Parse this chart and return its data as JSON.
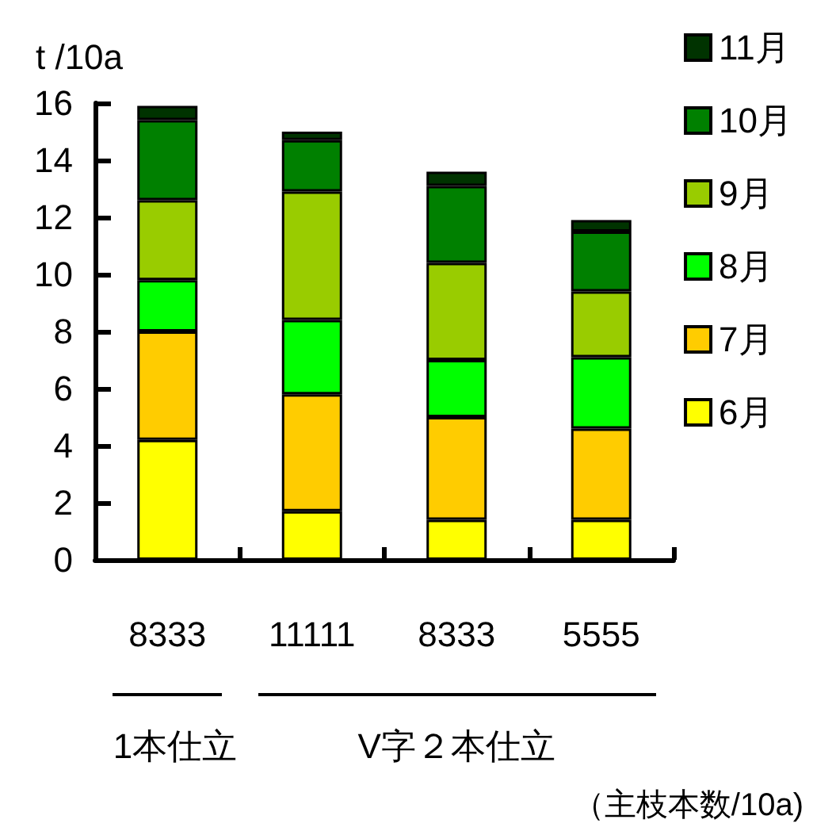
{
  "chart_data": {
    "type": "bar",
    "stacked": true,
    "ylabel": "t /10a",
    "xlabel": "（主枝本数/10a)",
    "categories": [
      "8333",
      "11111",
      "8333",
      "5555"
    ],
    "series": [
      {
        "name": "6月",
        "color": "#ffff00",
        "values": [
          4.2,
          1.7,
          1.4,
          1.4
        ]
      },
      {
        "name": "7月",
        "color": "#ffcc00",
        "values": [
          3.8,
          4.1,
          3.6,
          3.2
        ]
      },
      {
        "name": "8月",
        "color": "#00ff00",
        "values": [
          1.8,
          2.6,
          2.0,
          2.5
        ]
      },
      {
        "name": "9月",
        "color": "#99cc00",
        "values": [
          2.8,
          4.5,
          3.4,
          2.3
        ]
      },
      {
        "name": "10月",
        "color": "#008000",
        "values": [
          2.8,
          1.8,
          2.7,
          2.1
        ]
      },
      {
        "name": "11月",
        "color": "#003300",
        "values": [
          0.5,
          0.3,
          0.5,
          0.4
        ]
      }
    ],
    "ylim": [
      0,
      16
    ],
    "yticks": [
      0,
      2,
      4,
      6,
      8,
      10,
      12,
      14,
      16
    ],
    "grid": false,
    "legend": "top right",
    "annotations": [
      "1本仕立",
      "V字２本仕立"
    ]
  }
}
